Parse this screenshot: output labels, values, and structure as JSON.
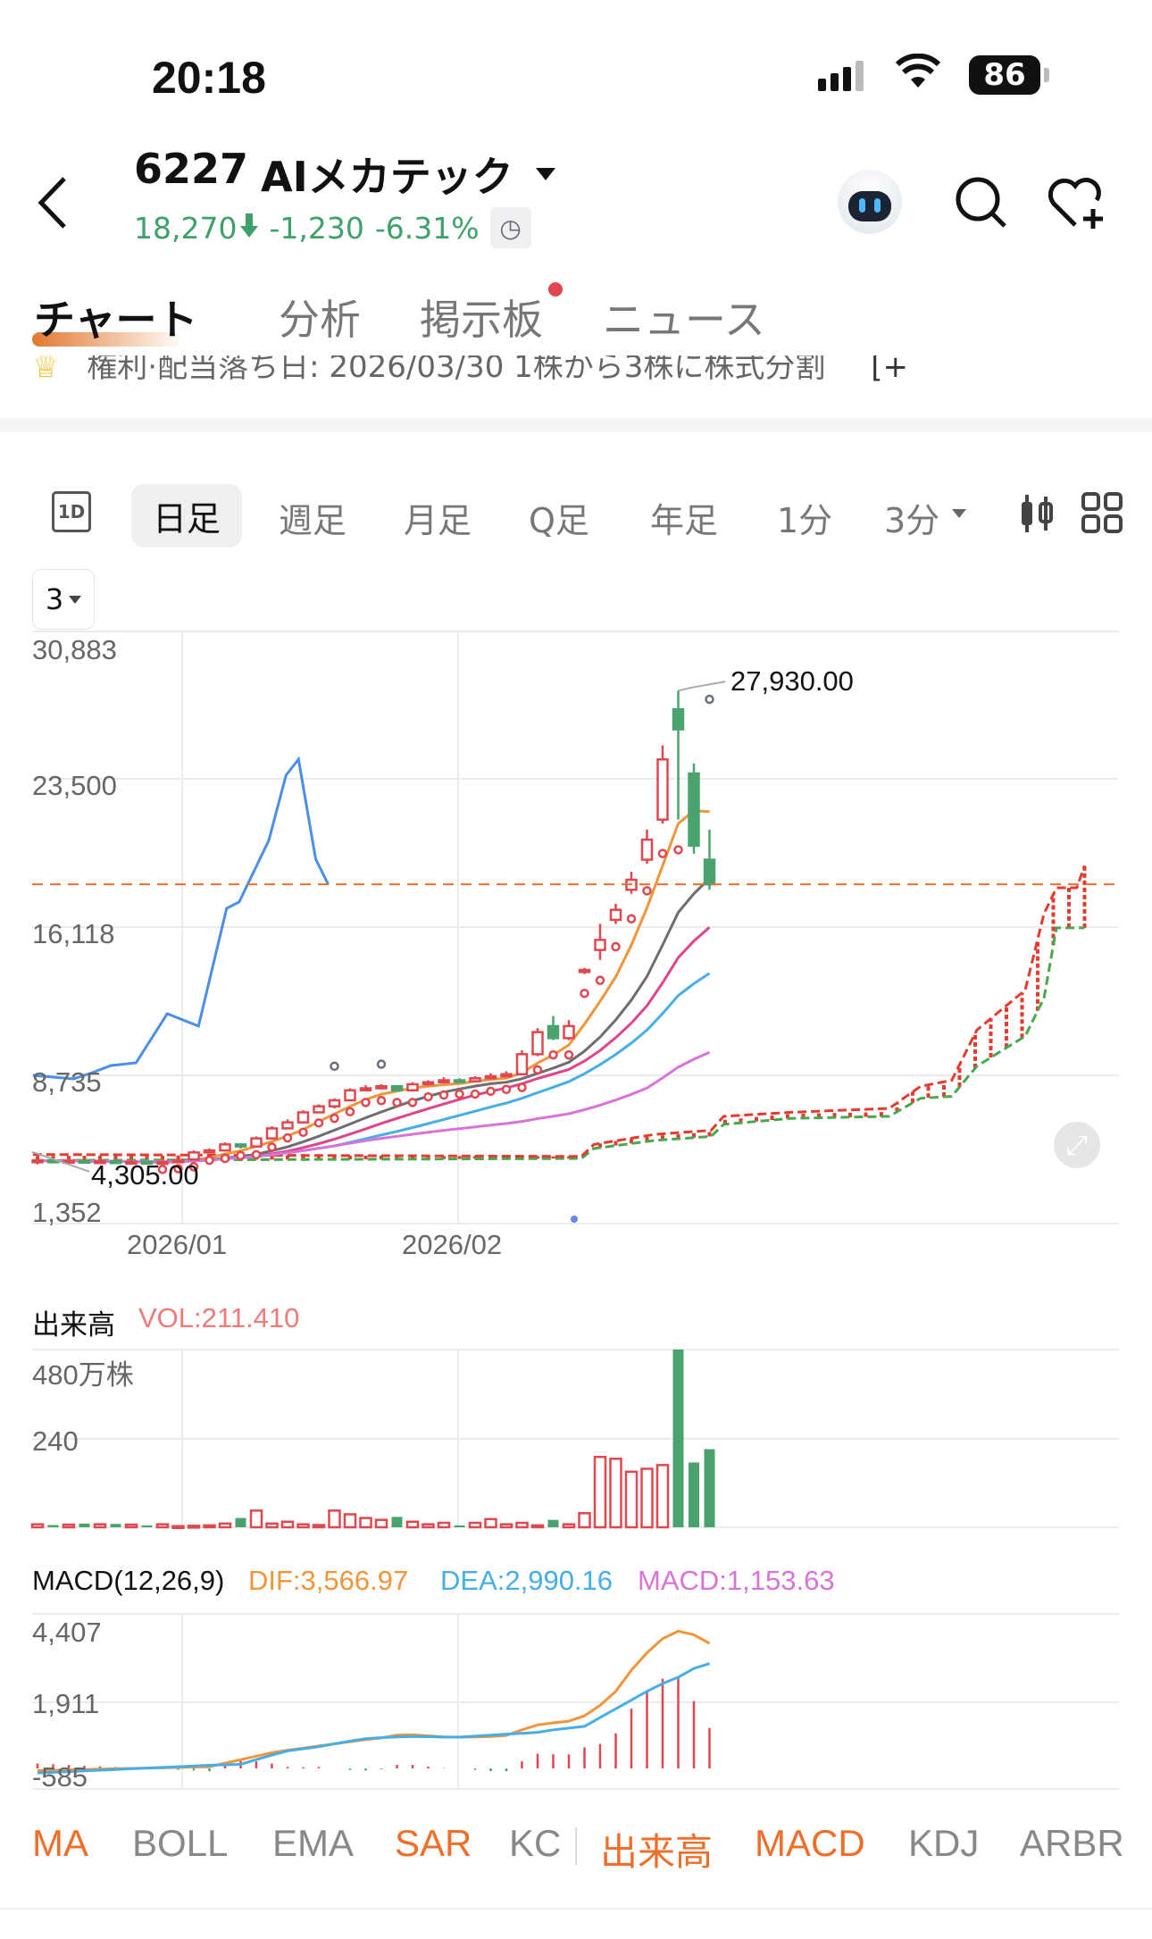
{
  "status_bar": {
    "time": "20:18",
    "battery": "86"
  },
  "header": {
    "code": "6227",
    "name": "AIメカテック",
    "price": "18,270",
    "change": "-1,230",
    "change_pct": "-6.31%",
    "price_color": "#3ea06b"
  },
  "tabs": [
    {
      "label": "チャート",
      "active": true
    },
    {
      "label": "分析"
    },
    {
      "label": "掲示板",
      "badge": true
    },
    {
      "label": "ニュース"
    }
  ],
  "notice": "権利·配当落ち日: 2026/03/30 1株から3株に株式分割",
  "periods": [
    "日足",
    "週足",
    "月足",
    "Q足",
    "年足",
    "1分",
    "3分"
  ],
  "active_period": "日足",
  "period_icon": "1D",
  "dropdown_value": "3",
  "main_chart": {
    "y_ticks": [
      "30,883",
      "23,500",
      "16,118",
      "8,735",
      "1,352"
    ],
    "x_ticks": [
      "2026/01",
      "2026/02"
    ],
    "high_label": "27,930.00",
    "low_label": "4,305.00"
  },
  "volume": {
    "title": "出来高",
    "value_label": "VOL:211.410",
    "y_ticks": [
      "480万株",
      "240"
    ]
  },
  "macd": {
    "title": "MACD(12,26,9)",
    "dif_label": "DIF:3,566.97",
    "dea_label": "DEA:2,990.16",
    "macd_label": "MACD:1,153.63",
    "y_ticks": [
      "4,407",
      "1,911",
      "-585"
    ]
  },
  "indicators": [
    {
      "label": "MA",
      "on": true
    },
    {
      "label": "BOLL"
    },
    {
      "label": "EMA"
    },
    {
      "label": "SAR",
      "on": true
    },
    {
      "label": "KC"
    },
    {
      "label": "出来高",
      "on": true
    },
    {
      "label": "MACD",
      "on": true
    },
    {
      "label": "KDJ"
    },
    {
      "label": "ARBR"
    }
  ],
  "colors": {
    "up": "#e0474f",
    "down": "#4aa36f",
    "accent": "#ee6e2a",
    "dif": "#f0953a",
    "dea": "#45aee6",
    "macd": "#d873d8"
  },
  "chart_data": {
    "type": "candlestick",
    "last_price": 18270,
    "ylim": [
      1352,
      30883
    ],
    "closes": [
      4500,
      4450,
      4480,
      4420,
      4460,
      4400,
      4430,
      4380,
      4420,
      4500,
      4900,
      5000,
      5300,
      5200,
      5600,
      6100,
      6400,
      6900,
      7200,
      7500,
      8000,
      8100,
      8200,
      8000,
      8300,
      8400,
      8500,
      8450,
      8600,
      8700,
      8800,
      9800,
      10900,
      10600,
      11200,
      14000,
      15500,
      17000,
      18500,
      20500,
      24500,
      26000,
      20200,
      18270
    ],
    "opens": [
      4450,
      4500,
      4450,
      4480,
      4420,
      4460,
      4400,
      4430,
      4380,
      4420,
      4550,
      4900,
      5000,
      5300,
      5200,
      5600,
      6100,
      6400,
      6900,
      7200,
      7500,
      8000,
      8100,
      8200,
      8000,
      8300,
      8400,
      8500,
      8450,
      8600,
      8700,
      8800,
      9800,
      11200,
      10600,
      13900,
      15000,
      16500,
      18000,
      19500,
      21500,
      27000,
      23800,
      19500
    ],
    "highs": [
      4600,
      4560,
      4550,
      4520,
      4540,
      4500,
      4520,
      4480,
      4500,
      4560,
      5000,
      5100,
      5400,
      5350,
      5700,
      6200,
      6550,
      7000,
      7300,
      7600,
      8100,
      8250,
      8300,
      8250,
      8400,
      8500,
      8650,
      8600,
      8700,
      8850,
      8950,
      10000,
      11100,
      11700,
      11500,
      14100,
      16300,
      17300,
      18900,
      21000,
      25200,
      27930,
      24300,
      21000
    ],
    "lows": [
      4305,
      4400,
      4400,
      4380,
      4400,
      4350,
      4380,
      4330,
      4360,
      4400,
      4500,
      4850,
      4950,
      5100,
      5150,
      5550,
      6050,
      6350,
      6850,
      7100,
      7450,
      7950,
      8050,
      7950,
      7950,
      8250,
      8350,
      8400,
      8400,
      8550,
      8650,
      8750,
      9700,
      10500,
      10500,
      13800,
      14500,
      16300,
      17800,
      19300,
      21300,
      21500,
      19800,
      18000
    ],
    "overlay_line": [
      [
        -0.3,
        8746
      ],
      [
        2.3,
        8568
      ],
      [
        3.5,
        8880
      ],
      [
        4.7,
        9236
      ],
      [
        6.3,
        9370
      ],
      [
        8.3,
        11820
      ],
      [
        10.3,
        11200
      ],
      [
        12.1,
        17075
      ],
      [
        12.9,
        17390
      ],
      [
        14.8,
        20460
      ],
      [
        15.9,
        23710
      ],
      [
        16.7,
        24510
      ],
      [
        17.8,
        19530
      ],
      [
        18.6,
        18280
      ]
    ],
    "cloud_lower": [
      [
        -0.3,
        4500
      ],
      [
        34.8,
        4600
      ],
      [
        35.6,
        5100
      ],
      [
        39.5,
        5500
      ],
      [
        43.1,
        5700
      ],
      [
        43.9,
        6300
      ],
      [
        48.2,
        6600
      ],
      [
        54.5,
        6700
      ],
      [
        56.5,
        7600
      ],
      [
        58.5,
        7700
      ],
      [
        60.1,
        9200
      ],
      [
        63.2,
        10700
      ],
      [
        64.4,
        12600
      ],
      [
        65.2,
        16100
      ],
      [
        67,
        16100
      ]
    ],
    "cloud_upper": [
      [
        -0.3,
        4800
      ],
      [
        34.8,
        4700
      ],
      [
        35.6,
        5300
      ],
      [
        39.5,
        5800
      ],
      [
        43.1,
        6000
      ],
      [
        43.9,
        6700
      ],
      [
        48.2,
        6900
      ],
      [
        54.5,
        7100
      ],
      [
        56.5,
        8200
      ],
      [
        58.5,
        8500
      ],
      [
        60.1,
        11000
      ],
      [
        63.2,
        13000
      ],
      [
        64.4,
        16800
      ],
      [
        65.2,
        18100
      ],
      [
        66.5,
        18100
      ],
      [
        67,
        19200
      ]
    ],
    "volume": [
      8,
      6,
      7,
      10,
      8,
      9,
      7,
      5,
      8,
      3,
      4,
      5,
      10,
      25,
      45,
      10,
      15,
      8,
      6,
      45,
      35,
      25,
      20,
      28,
      15,
      8,
      12,
      5,
      12,
      22,
      8,
      12,
      5,
      20,
      8,
      38,
      190,
      185,
      150,
      158,
      168,
      480,
      175,
      211
    ],
    "volume_ylim": [
      0,
      480
    ],
    "dif": [
      -60,
      -50,
      -40,
      -30,
      -20,
      -10,
      0,
      10,
      20,
      30,
      40,
      50,
      150,
      250,
      350,
      450,
      520,
      576,
      640,
      700,
      760,
      821,
      870,
      950,
      960,
      930,
      900,
      892,
      900,
      910,
      940,
      1100,
      1240,
      1300,
      1349,
      1500,
      1800,
      2200,
      2800,
      3300,
      3700,
      3915,
      3810,
      3567
    ],
    "dea": [
      -130,
      -110,
      -90,
      -70,
      -50,
      -30,
      -10,
      10,
      30,
      50,
      70,
      90,
      105,
      119,
      250,
      380,
      500,
      560,
      620,
      700,
      780,
      850,
      880,
      900,
      910,
      905,
      895,
      892,
      920,
      950,
      980,
      1000,
      1030,
      1100,
      1150,
      1200,
      1450,
      1700,
      1950,
      2200,
      2420,
      2600,
      2850,
      2990
    ],
    "macd_ylim": [
      -585,
      4407
    ]
  }
}
